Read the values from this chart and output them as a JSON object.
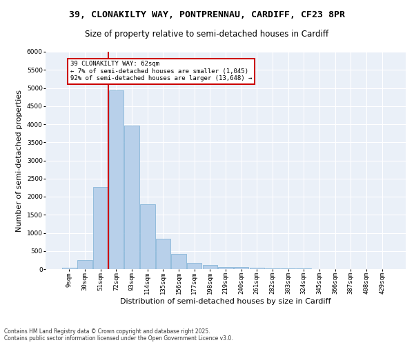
{
  "title_line1": "39, CLONAKILTY WAY, PONTPRENNAU, CARDIFF, CF23 8PR",
  "title_line2": "Size of property relative to semi-detached houses in Cardiff",
  "xlabel": "Distribution of semi-detached houses by size in Cardiff",
  "ylabel": "Number of semi-detached properties",
  "categories": [
    "9sqm",
    "30sqm",
    "51sqm",
    "72sqm",
    "93sqm",
    "114sqm",
    "135sqm",
    "156sqm",
    "177sqm",
    "198sqm",
    "219sqm",
    "240sqm",
    "261sqm",
    "282sqm",
    "303sqm",
    "324sqm",
    "345sqm",
    "366sqm",
    "387sqm",
    "408sqm",
    "429sqm"
  ],
  "values": [
    40,
    250,
    2260,
    4930,
    3970,
    1790,
    845,
    420,
    165,
    105,
    65,
    50,
    35,
    25,
    15,
    10,
    8,
    5,
    3,
    2,
    1
  ],
  "bar_color": "#b8d0ea",
  "bar_edge_color": "#7aafd4",
  "annotation_text": "39 CLONAKILTY WAY: 62sqm\n← 7% of semi-detached houses are smaller (1,045)\n92% of semi-detached houses are larger (13,648) →",
  "annotation_box_color": "#ffffff",
  "annotation_border_color": "#cc0000",
  "vline_color": "#cc0000",
  "ylim": [
    0,
    6000
  ],
  "yticks": [
    0,
    500,
    1000,
    1500,
    2000,
    2500,
    3000,
    3500,
    4000,
    4500,
    5000,
    5500,
    6000
  ],
  "bg_color": "#eaf0f8",
  "footer_text": "Contains HM Land Registry data © Crown copyright and database right 2025.\nContains public sector information licensed under the Open Government Licence v3.0.",
  "title_fontsize": 9.5,
  "subtitle_fontsize": 8.5,
  "tick_fontsize": 6.5,
  "label_fontsize": 8,
  "footer_fontsize": 5.5
}
